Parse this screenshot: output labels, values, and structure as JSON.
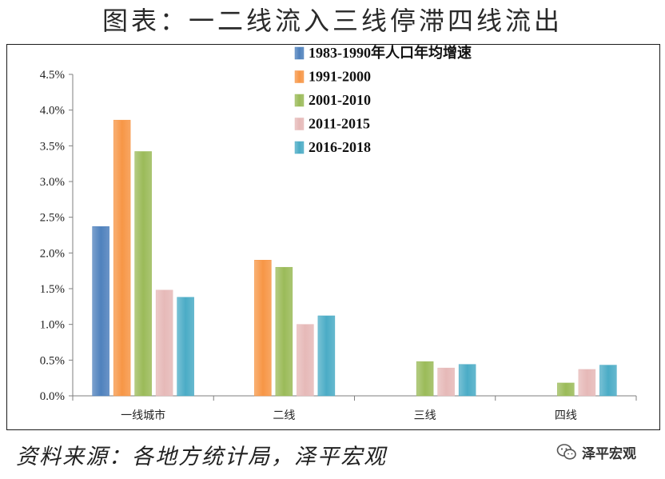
{
  "header": {
    "title": "图表：一二线流入三线停滞四线流出"
  },
  "chart_data": {
    "type": "bar",
    "categories": [
      "一线城市",
      "二线",
      "三线",
      "四线"
    ],
    "series": [
      {
        "name": "1983-1990年人口年均增速",
        "color": "#4f81bd",
        "values": [
          2.37,
          null,
          null,
          null
        ]
      },
      {
        "name": "1991-2000",
        "color": "#f79646",
        "values": [
          3.86,
          1.9,
          null,
          null
        ]
      },
      {
        "name": "2001-2010",
        "color": "#9bbb59",
        "values": [
          3.42,
          1.8,
          0.48,
          0.18
        ]
      },
      {
        "name": "2011-2015",
        "color": "#e6b9b8",
        "values": [
          1.48,
          1.0,
          0.39,
          0.37
        ]
      },
      {
        "name": "2016-2018",
        "color": "#4bacc6",
        "values": [
          1.38,
          1.12,
          0.44,
          0.43
        ]
      }
    ],
    "yticks": [
      "0.0%",
      "0.5%",
      "1.0%",
      "1.5%",
      "2.0%",
      "2.5%",
      "3.0%",
      "3.5%",
      "4.0%",
      "4.5%"
    ],
    "ylim": [
      0,
      4.5
    ],
    "grid": false,
    "legend_position": "top-right"
  },
  "footer": {
    "source": "资料来源：各地方统计局，泽平宏观",
    "brand": "泽平宏观"
  }
}
